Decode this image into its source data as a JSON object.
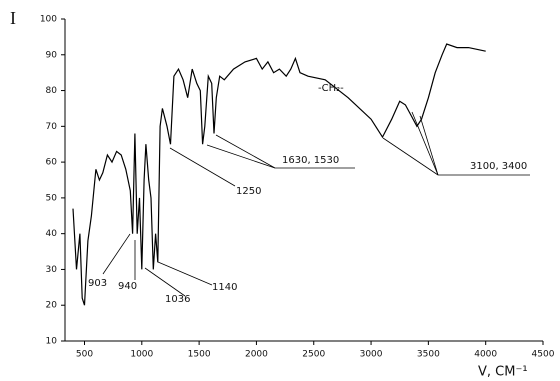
{
  "chart_data": {
    "type": "line",
    "y_label": "I",
    "x_label": "V, CM⁻¹",
    "x": [
      400,
      430,
      460,
      480,
      500,
      530,
      560,
      600,
      630,
      660,
      700,
      740,
      780,
      820,
      860,
      900,
      920,
      940,
      960,
      980,
      1000,
      1020,
      1036,
      1060,
      1080,
      1100,
      1120,
      1140,
      1160,
      1180,
      1220,
      1250,
      1280,
      1320,
      1360,
      1400,
      1440,
      1480,
      1510,
      1530,
      1550,
      1580,
      1610,
      1630,
      1650,
      1680,
      1720,
      1800,
      1900,
      2000,
      2050,
      2100,
      2150,
      2200,
      2260,
      2300,
      2340,
      2380,
      2450,
      2600,
      2800,
      3000,
      3100,
      3180,
      3250,
      3300,
      3350,
      3400,
      3440,
      3500,
      3560,
      3620,
      3660,
      3750,
      3850,
      4000
    ],
    "series": [
      {
        "name": "spectrum",
        "color": "#000000",
        "values": [
          47,
          30,
          40,
          22,
          20,
          38,
          45,
          58,
          55,
          57,
          62,
          60,
          63,
          62,
          58,
          52,
          40,
          68,
          40,
          50,
          30,
          55,
          65,
          55,
          50,
          30,
          40,
          32,
          70,
          75,
          70,
          65,
          84,
          86,
          83,
          78,
          86,
          82,
          80,
          65,
          70,
          84,
          82,
          68,
          78,
          84,
          83,
          86,
          88,
          89,
          86,
          88,
          85,
          86,
          84,
          86,
          89,
          85,
          84,
          83,
          78,
          72,
          67,
          72,
          77,
          76,
          73,
          70,
          72,
          78,
          85,
          90,
          93,
          92,
          92,
          91
        ]
      }
    ],
    "xlim": [
      330,
      4500
    ],
    "ylim": [
      10,
      100
    ],
    "xticks": [
      500,
      1000,
      1500,
      2000,
      2500,
      3000,
      3500,
      4000,
      4500
    ],
    "yticks": [
      10,
      20,
      30,
      40,
      50,
      60,
      70,
      80,
      90,
      100
    ],
    "annotations": [
      "903",
      "940",
      "1036",
      "1140",
      "1250",
      "1630, 1530",
      "3100, 3400",
      "-CH₂-"
    ]
  }
}
